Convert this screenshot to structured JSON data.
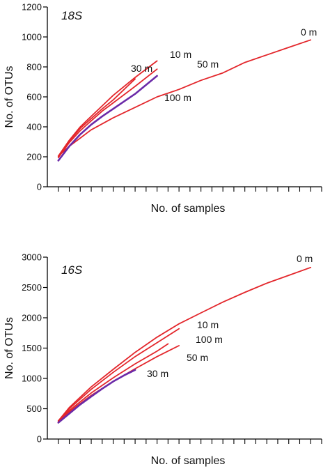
{
  "chart_data": [
    {
      "type": "line",
      "title": "18S",
      "xlabel": "No. of samples",
      "ylabel": "No. of OTUs",
      "ylim": [
        0,
        1200
      ],
      "yticks": [
        0,
        200,
        400,
        600,
        800,
        1000,
        1200
      ],
      "xlim": [
        0,
        25
      ],
      "x_tick_count": 25,
      "x_tick_labels_shown": false,
      "grid": false,
      "series": [
        {
          "name": "0 m",
          "color": "#e3262b",
          "x": [
            1,
            2,
            3,
            4,
            6,
            8,
            10,
            12,
            14,
            16,
            18,
            20,
            22,
            24
          ],
          "values": [
            205,
            270,
            325,
            380,
            460,
            530,
            600,
            650,
            710,
            760,
            830,
            880,
            930,
            980
          ]
        },
        {
          "name": "10 m",
          "color": "#e3262b",
          "x": [
            1,
            2,
            3,
            4,
            5,
            6,
            8,
            10
          ],
          "values": [
            205,
            310,
            400,
            470,
            540,
            610,
            730,
            840
          ]
        },
        {
          "name": "30 m",
          "color": "#e3262b",
          "x": [
            1,
            2,
            3,
            4,
            5,
            6,
            7,
            8
          ],
          "values": [
            200,
            305,
            390,
            455,
            520,
            580,
            650,
            720
          ]
        },
        {
          "name": "50 m",
          "color": "#e3262b",
          "x": [
            1,
            2,
            3,
            4,
            5,
            6,
            8,
            10
          ],
          "values": [
            195,
            295,
            375,
            440,
            505,
            560,
            670,
            785
          ]
        },
        {
          "name": "100 m",
          "color": "#6b2aa8",
          "x": [
            1,
            2,
            3,
            4,
            5,
            6,
            8,
            10
          ],
          "values": [
            175,
            270,
            350,
            415,
            470,
            520,
            620,
            740
          ]
        }
      ]
    },
    {
      "type": "line",
      "title": "16S",
      "xlabel": "No. of samples",
      "ylabel": "No. of OTUs",
      "ylim": [
        0,
        3000
      ],
      "yticks": [
        0,
        500,
        1000,
        1500,
        2000,
        2500,
        3000
      ],
      "xlim": [
        0,
        25
      ],
      "x_tick_count": 25,
      "x_tick_labels_shown": false,
      "grid": false,
      "series": [
        {
          "name": "0 m",
          "color": "#e3262b",
          "x": [
            1,
            2,
            4,
            6,
            8,
            10,
            12,
            14,
            16,
            18,
            20,
            22,
            24
          ],
          "values": [
            300,
            520,
            860,
            1150,
            1430,
            1680,
            1900,
            2080,
            2260,
            2420,
            2570,
            2700,
            2830
          ]
        },
        {
          "name": "10 m",
          "color": "#e3262b",
          "x": [
            1,
            2,
            4,
            6,
            8,
            10,
            12
          ],
          "values": [
            300,
            500,
            820,
            1100,
            1360,
            1590,
            1820
          ]
        },
        {
          "name": "100 m",
          "color": "#e3262b",
          "x": [
            1,
            2,
            4,
            6,
            8,
            10,
            11
          ],
          "values": [
            290,
            470,
            760,
            1010,
            1240,
            1450,
            1570
          ]
        },
        {
          "name": "50 m",
          "color": "#e3262b",
          "x": [
            1,
            2,
            4,
            6,
            8,
            10,
            12
          ],
          "values": [
            280,
            450,
            720,
            950,
            1160,
            1360,
            1540
          ]
        },
        {
          "name": "30 m",
          "color": "#6b2aa8",
          "x": [
            1,
            2,
            3,
            4,
            5,
            6,
            7,
            8
          ],
          "values": [
            270,
            420,
            570,
            700,
            830,
            950,
            1050,
            1140
          ]
        }
      ]
    }
  ]
}
